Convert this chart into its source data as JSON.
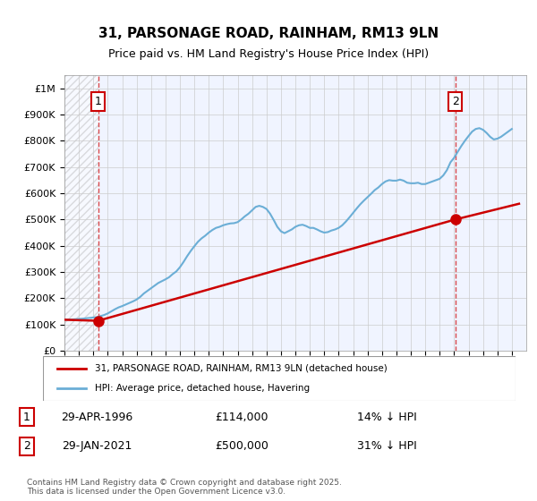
{
  "title": "31, PARSONAGE ROAD, RAINHAM, RM13 9LN",
  "subtitle": "Price paid vs. HM Land Registry's House Price Index (HPI)",
  "xlim": [
    1994.0,
    2026.0
  ],
  "ylim": [
    0,
    1050000
  ],
  "yticks": [
    0,
    100000,
    200000,
    300000,
    400000,
    500000,
    600000,
    700000,
    800000,
    900000,
    1000000
  ],
  "ytick_labels": [
    "£0",
    "£100K",
    "£200K",
    "£300K",
    "£400K",
    "£500K",
    "£600K",
    "£700K",
    "£800K",
    "£900K",
    "£1M"
  ],
  "xticks": [
    1994,
    1995,
    1996,
    1997,
    1998,
    1999,
    2000,
    2001,
    2002,
    2003,
    2004,
    2005,
    2006,
    2007,
    2008,
    2009,
    2010,
    2011,
    2012,
    2013,
    2014,
    2015,
    2016,
    2017,
    2018,
    2019,
    2020,
    2021,
    2022,
    2023,
    2024,
    2025
  ],
  "sale1_x": 1996.33,
  "sale1_y": 114000,
  "sale1_label": "1",
  "sale1_date": "29-APR-1996",
  "sale1_price": "£114,000",
  "sale1_hpi": "14% ↓ HPI",
  "sale2_x": 2021.08,
  "sale2_y": 500000,
  "sale2_label": "2",
  "sale2_date": "29-JAN-2021",
  "sale2_price": "£500,000",
  "sale2_hpi": "31% ↓ HPI",
  "hpi_color": "#6baed6",
  "price_color": "#cc0000",
  "dashed_color": "#cc0000",
  "bg_color": "#f0f4ff",
  "grid_color": "#cccccc",
  "legend1": "31, PARSONAGE ROAD, RAINHAM, RM13 9LN (detached house)",
  "legend2": "HPI: Average price, detached house, Havering",
  "footer": "Contains HM Land Registry data © Crown copyright and database right 2025.\nThis data is licensed under the Open Government Licence v3.0.",
  "hpi_data_x": [
    1994.0,
    1994.25,
    1994.5,
    1994.75,
    1995.0,
    1995.25,
    1995.5,
    1995.75,
    1996.0,
    1996.25,
    1996.5,
    1996.75,
    1997.0,
    1997.25,
    1997.5,
    1997.75,
    1998.0,
    1998.25,
    1998.5,
    1998.75,
    1999.0,
    1999.25,
    1999.5,
    1999.75,
    2000.0,
    2000.25,
    2000.5,
    2000.75,
    2001.0,
    2001.25,
    2001.5,
    2001.75,
    2002.0,
    2002.25,
    2002.5,
    2002.75,
    2003.0,
    2003.25,
    2003.5,
    2003.75,
    2004.0,
    2004.25,
    2004.5,
    2004.75,
    2005.0,
    2005.25,
    2005.5,
    2005.75,
    2006.0,
    2006.25,
    2006.5,
    2006.75,
    2007.0,
    2007.25,
    2007.5,
    2007.75,
    2008.0,
    2008.25,
    2008.5,
    2008.75,
    2009.0,
    2009.25,
    2009.5,
    2009.75,
    2010.0,
    2010.25,
    2010.5,
    2010.75,
    2011.0,
    2011.25,
    2011.5,
    2011.75,
    2012.0,
    2012.25,
    2012.5,
    2012.75,
    2013.0,
    2013.25,
    2013.5,
    2013.75,
    2014.0,
    2014.25,
    2014.5,
    2014.75,
    2015.0,
    2015.25,
    2015.5,
    2015.75,
    2016.0,
    2016.25,
    2016.5,
    2016.75,
    2017.0,
    2017.25,
    2017.5,
    2017.75,
    2018.0,
    2018.25,
    2018.5,
    2018.75,
    2019.0,
    2019.25,
    2019.5,
    2019.75,
    2020.0,
    2020.25,
    2020.5,
    2020.75,
    2021.0,
    2021.25,
    2021.5,
    2021.75,
    2022.0,
    2022.25,
    2022.5,
    2022.75,
    2023.0,
    2023.25,
    2023.5,
    2023.75,
    2024.0,
    2024.25,
    2024.5,
    2024.75,
    2025.0
  ],
  "hpi_data_y": [
    118000,
    118500,
    119000,
    120000,
    121000,
    122000,
    123500,
    125000,
    126500,
    128000,
    132000,
    136000,
    142000,
    150000,
    158000,
    165000,
    170000,
    176000,
    182000,
    188000,
    195000,
    205000,
    218000,
    228000,
    238000,
    248000,
    258000,
    265000,
    272000,
    280000,
    292000,
    302000,
    318000,
    338000,
    360000,
    380000,
    398000,
    415000,
    428000,
    438000,
    450000,
    460000,
    468000,
    472000,
    478000,
    482000,
    485000,
    486000,
    490000,
    500000,
    512000,
    522000,
    535000,
    548000,
    552000,
    548000,
    540000,
    522000,
    498000,
    472000,
    455000,
    448000,
    455000,
    462000,
    472000,
    478000,
    480000,
    475000,
    468000,
    468000,
    462000,
    455000,
    450000,
    452000,
    458000,
    462000,
    468000,
    478000,
    492000,
    508000,
    525000,
    542000,
    558000,
    572000,
    585000,
    598000,
    612000,
    622000,
    635000,
    645000,
    650000,
    648000,
    648000,
    652000,
    648000,
    640000,
    638000,
    638000,
    640000,
    635000,
    635000,
    640000,
    645000,
    650000,
    655000,
    668000,
    688000,
    718000,
    735000,
    758000,
    780000,
    800000,
    818000,
    835000,
    845000,
    848000,
    842000,
    830000,
    815000,
    805000,
    808000,
    815000,
    825000,
    835000,
    845000
  ],
  "price_data_x": [
    1994.0,
    1996.33,
    2021.08,
    2025.5
  ],
  "price_data_y": [
    118000,
    114000,
    500000,
    560000
  ]
}
